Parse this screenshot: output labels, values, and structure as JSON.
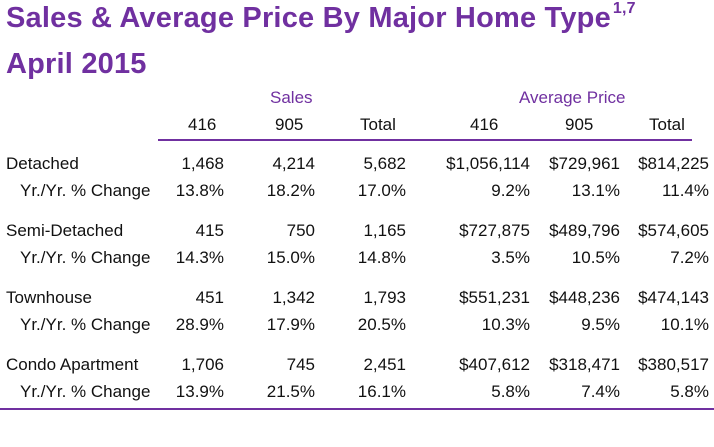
{
  "title": {
    "line1": "Sales & Average Price  By Major Home Type",
    "superscript": "1,7",
    "line2": "April 2015"
  },
  "groups": {
    "sales": "Sales",
    "avg_price": "Average Price"
  },
  "columns": [
    "416",
    "905",
    "Total",
    "416",
    "905",
    "Total"
  ],
  "rows": [
    {
      "label": "Detached",
      "values": [
        "1,468",
        "4,214",
        "5,682",
        "$1,056,114",
        "$729,961",
        "$814,225"
      ],
      "change_label": "Yr./Yr. % Change",
      "change": [
        "13.8%",
        "18.2%",
        "17.0%",
        "9.2%",
        "13.1%",
        "11.4%"
      ]
    },
    {
      "label": "Semi-Detached",
      "values": [
        "415",
        "750",
        "1,165",
        "$727,875",
        "$489,796",
        "$574,605"
      ],
      "change_label": "Yr./Yr. % Change",
      "change": [
        "14.3%",
        "15.0%",
        "14.8%",
        "3.5%",
        "10.5%",
        "7.2%"
      ]
    },
    {
      "label": "Townhouse",
      "values": [
        "451",
        "1,342",
        "1,793",
        "$551,231",
        "$448,236",
        "$474,143"
      ],
      "change_label": "Yr./Yr. % Change",
      "change": [
        "28.9%",
        "17.9%",
        "20.5%",
        "10.3%",
        "9.5%",
        "10.1%"
      ]
    },
    {
      "label": "Condo Apartment",
      "values": [
        "1,706",
        "745",
        "2,451",
        "$407,612",
        "$318,471",
        "$380,517"
      ],
      "change_label": "Yr./Yr. % Change",
      "change": [
        "13.9%",
        "21.5%",
        "16.1%",
        "5.8%",
        "7.4%",
        "5.8%"
      ]
    }
  ],
  "colors": {
    "accent": "#7030a0",
    "text": "#111111"
  }
}
